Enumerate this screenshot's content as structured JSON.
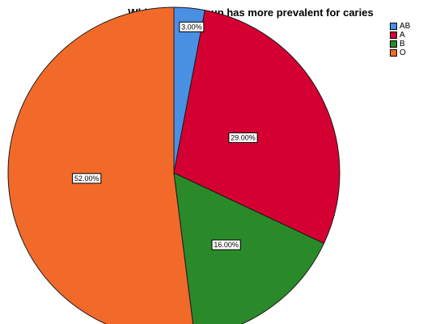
{
  "chart_data": {
    "type": "pie",
    "title": "Which blood group has more prevalent for caries",
    "categories": [
      "AB",
      "A",
      "B",
      "O"
    ],
    "values": [
      3.0,
      29.0,
      16.0,
      52.0
    ],
    "labels": [
      "3.00%",
      "29.00%",
      "16.00%",
      "52.00%"
    ],
    "colors": [
      "#4a90e2",
      "#d50032",
      "#2a8a2a",
      "#f26a2a"
    ],
    "legend_position": "top-right"
  }
}
